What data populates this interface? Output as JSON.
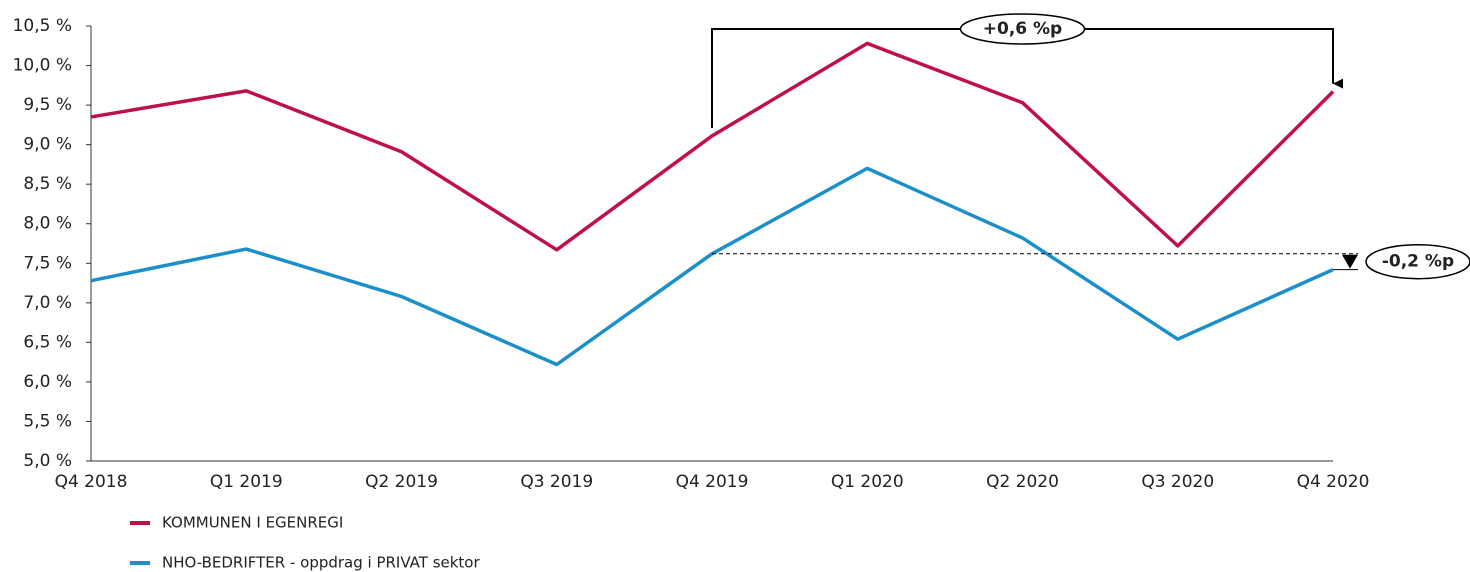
{
  "chart_data": {
    "type": "line",
    "categories": [
      "Q4 2018",
      "Q1 2019",
      "Q2 2019",
      "Q3 2019",
      "Q4 2019",
      "Q1 2020",
      "Q2 2020",
      "Q3 2020",
      "Q4 2020"
    ],
    "series": [
      {
        "name": "KOMMUNEN I EGENREGI",
        "color": "#c0104a",
        "values": [
          9.35,
          9.68,
          8.91,
          7.67,
          9.11,
          10.28,
          9.53,
          7.72,
          9.67
        ]
      },
      {
        "name": "NHO-BEDRIFTER - oppdrag i PRIVAT sektor",
        "color": "#1a8fca",
        "values": [
          7.28,
          7.68,
          7.08,
          6.22,
          7.62,
          8.7,
          7.82,
          6.54,
          7.42
        ]
      }
    ],
    "ylim": [
      5,
      10.5
    ],
    "yticks": [
      {
        "value": 5,
        "label": "5,0 %"
      },
      {
        "value": 5.5,
        "label": "5,5 %"
      },
      {
        "value": 6,
        "label": "6,0 %"
      },
      {
        "value": 6.5,
        "label": "6,5 %"
      },
      {
        "value": 7,
        "label": "7,0 %"
      },
      {
        "value": 7.5,
        "label": "7,5 %"
      },
      {
        "value": 8,
        "label": "8,0 %"
      },
      {
        "value": 8.5,
        "label": "8,5 %"
      },
      {
        "value": 9,
        "label": "9,0 %"
      },
      {
        "value": 9.5,
        "label": "9,5 %"
      },
      {
        "value": 10,
        "label": "10,0 %"
      },
      {
        "value": 10.5,
        "label": "10,5 %"
      }
    ],
    "annotations": [
      "+0,6 %p",
      "-0,2 %p"
    ]
  }
}
